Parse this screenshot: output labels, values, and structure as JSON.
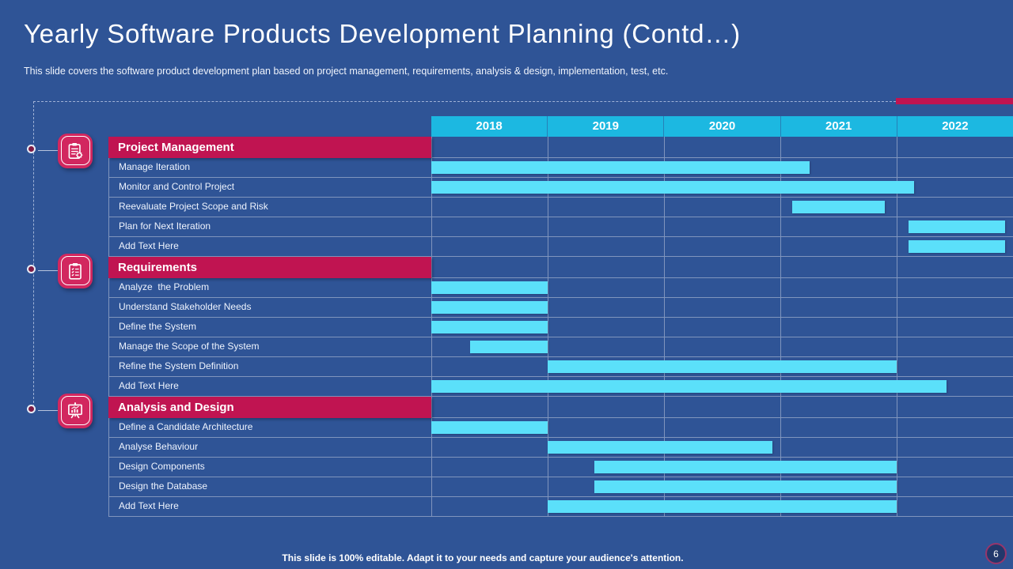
{
  "slide": {
    "title": "Yearly Software Products Development Planning (Contd…)",
    "subtitle": "This slide covers the software product development plan based on project management, requirements, analysis & design, implementation, test, etc.",
    "footer": "This slide is 100% editable. Adapt it to your needs and capture your audience's attention.",
    "page_number": "6"
  },
  "colors": {
    "background": "#2F5496",
    "accent_crimson": "#C01451",
    "icon_crimson": "#D2275F",
    "year_header_cyan": "#1CB8E1",
    "bar_cyan": "#5BE0FA",
    "gridline": "#8095BD",
    "page_badge_ring": "#97356B",
    "page_badge_fill": "#22386B"
  },
  "chart_data": {
    "type": "gantt",
    "title": "Yearly Software Products Development Planning (Contd…)",
    "x_axis": {
      "unit": "year",
      "categories": [
        "2018",
        "2019",
        "2020",
        "2021",
        "2022"
      ],
      "range": [
        2018,
        2023
      ]
    },
    "legend": "none",
    "sections": [
      {
        "label": "Project Management",
        "icon": "clipboard-gear-icon",
        "tasks": [
          {
            "label": "Manage Iteration",
            "start": 2018.0,
            "end": 2021.25
          },
          {
            "label": "Monitor and Control Project",
            "start": 2018.0,
            "end": 2022.15
          },
          {
            "label": "Reevaluate Project Scope and Risk",
            "start": 2021.1,
            "end": 2021.9
          },
          {
            "label": "Plan for Next Iteration",
            "start": 2022.1,
            "end": 2022.93
          },
          {
            "label": "Add Text Here",
            "start": 2022.1,
            "end": 2022.93
          }
        ]
      },
      {
        "label": "Requirements",
        "icon": "clipboard-checklist-icon",
        "tasks": [
          {
            "label": "Analyze  the Problem",
            "start": 2018.0,
            "end": 2019.0
          },
          {
            "label": "Understand Stakeholder Needs",
            "start": 2018.0,
            "end": 2019.0
          },
          {
            "label": "Define the System",
            "start": 2018.0,
            "end": 2019.0
          },
          {
            "label": "Manage the Scope of the System",
            "start": 2018.33,
            "end": 2019.0
          },
          {
            "label": "Refine the System Definition",
            "start": 2019.0,
            "end": 2022.0
          },
          {
            "label": "Add Text Here",
            "start": 2018.0,
            "end": 2022.43
          }
        ]
      },
      {
        "label": "Analysis and Design",
        "icon": "presentation-chart-icon",
        "tasks": [
          {
            "label": "Define a Candidate Architecture",
            "start": 2018.0,
            "end": 2019.0
          },
          {
            "label": "Analyse Behaviour",
            "start": 2019.0,
            "end": 2020.93
          },
          {
            "label": "Design Components",
            "start": 2019.4,
            "end": 2022.0
          },
          {
            "label": "Design the Database",
            "start": 2019.4,
            "end": 2022.0
          },
          {
            "label": "Add Text Here",
            "start": 2019.0,
            "end": 2022.0
          }
        ]
      }
    ]
  }
}
